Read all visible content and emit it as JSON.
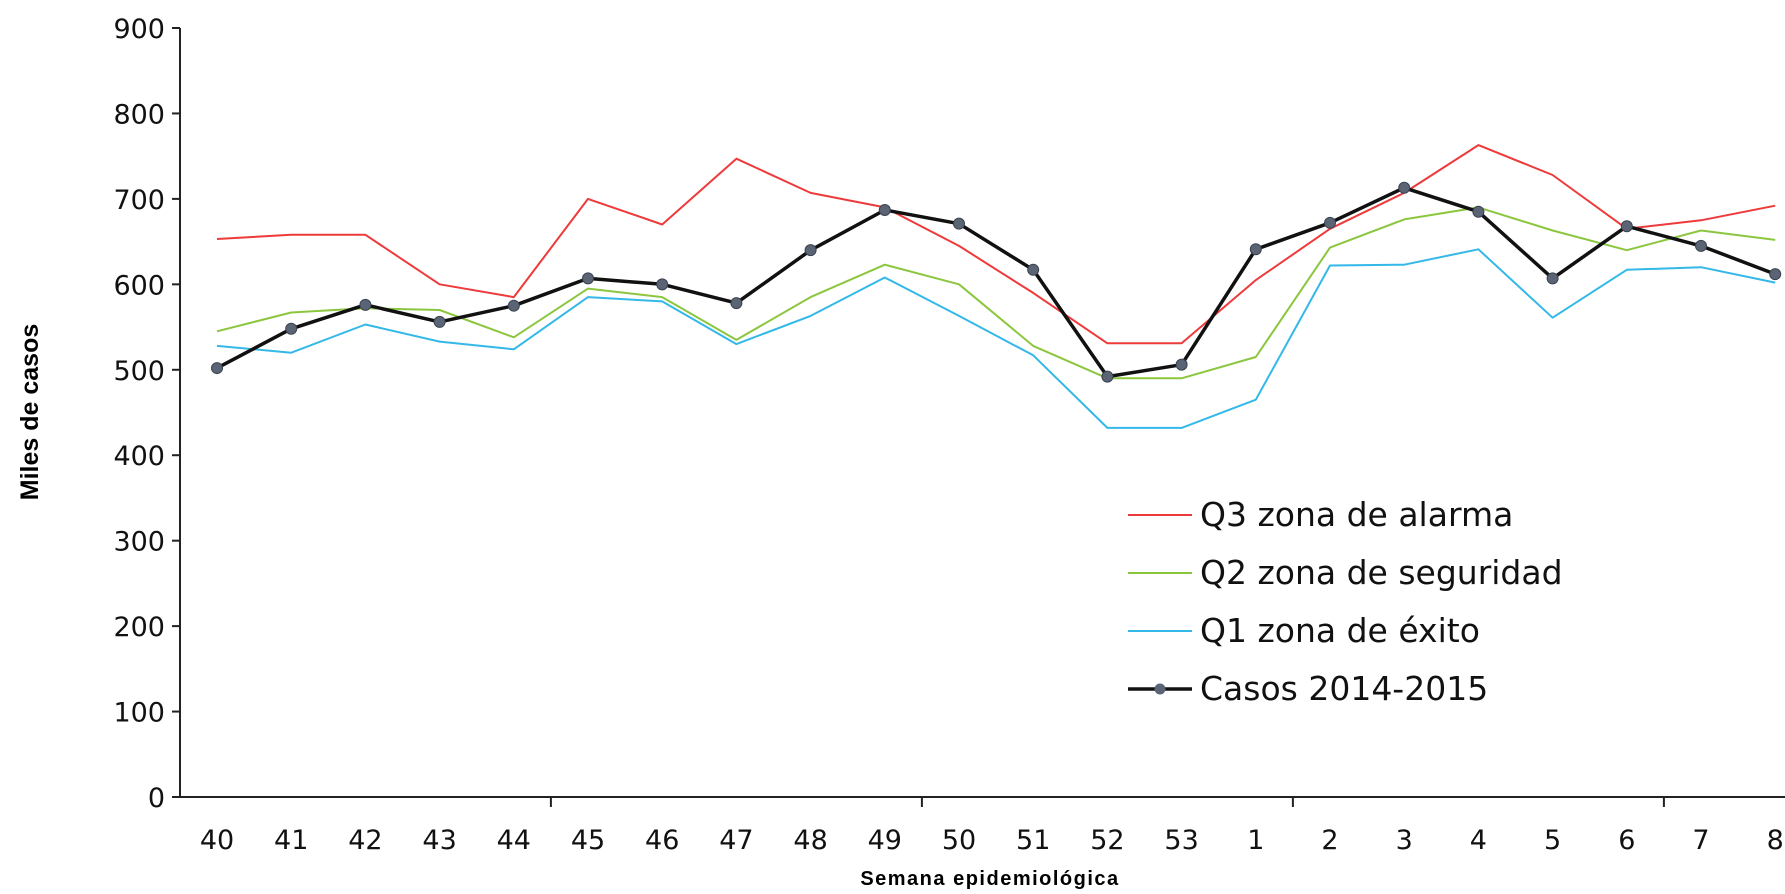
{
  "chart_data": {
    "type": "line",
    "title": "",
    "xlabel": "Semana epidemiológica",
    "ylabel": "Miles de casos",
    "ylim": [
      0,
      900
    ],
    "yticks": [
      0,
      100,
      200,
      300,
      400,
      500,
      600,
      700,
      800,
      900
    ],
    "categories": [
      "40",
      "41",
      "42",
      "43",
      "44",
      "45",
      "46",
      "47",
      "48",
      "49",
      "50",
      "51",
      "52",
      "53",
      "1",
      "2",
      "3",
      "4",
      "5",
      "6",
      "7",
      "8"
    ],
    "grid": false,
    "legend": "center-right",
    "series": [
      {
        "name": "Q3 zona de alarma",
        "color": "#ee3a3a",
        "markers": false,
        "values": [
          653,
          658,
          658,
          600,
          585,
          700,
          670,
          747,
          707,
          690,
          645,
          590,
          531,
          531,
          605,
          665,
          707,
          763,
          728,
          665,
          675,
          692
        ]
      },
      {
        "name": "Q2 zona de seguridad",
        "color": "#8cc63f",
        "markers": false,
        "values": [
          545,
          567,
          572,
          570,
          538,
          595,
          585,
          535,
          585,
          623,
          600,
          528,
          490,
          490,
          515,
          643,
          676,
          690,
          663,
          640,
          663,
          652
        ]
      },
      {
        "name": "Q1 zona de éxito",
        "color": "#33b8e8",
        "markers": false,
        "values": [
          528,
          520,
          553,
          533,
          524,
          585,
          580,
          530,
          563,
          608,
          563,
          517,
          432,
          432,
          465,
          622,
          623,
          641,
          561,
          617,
          620,
          602
        ]
      },
      {
        "name": "Casos 2014-2015",
        "color": "#111111",
        "markers": true,
        "values": [
          502,
          548,
          576,
          556,
          575,
          607,
          600,
          578,
          640,
          687,
          671,
          617,
          492,
          506,
          641,
          672,
          713,
          685,
          607,
          668,
          645,
          612
        ]
      }
    ]
  }
}
